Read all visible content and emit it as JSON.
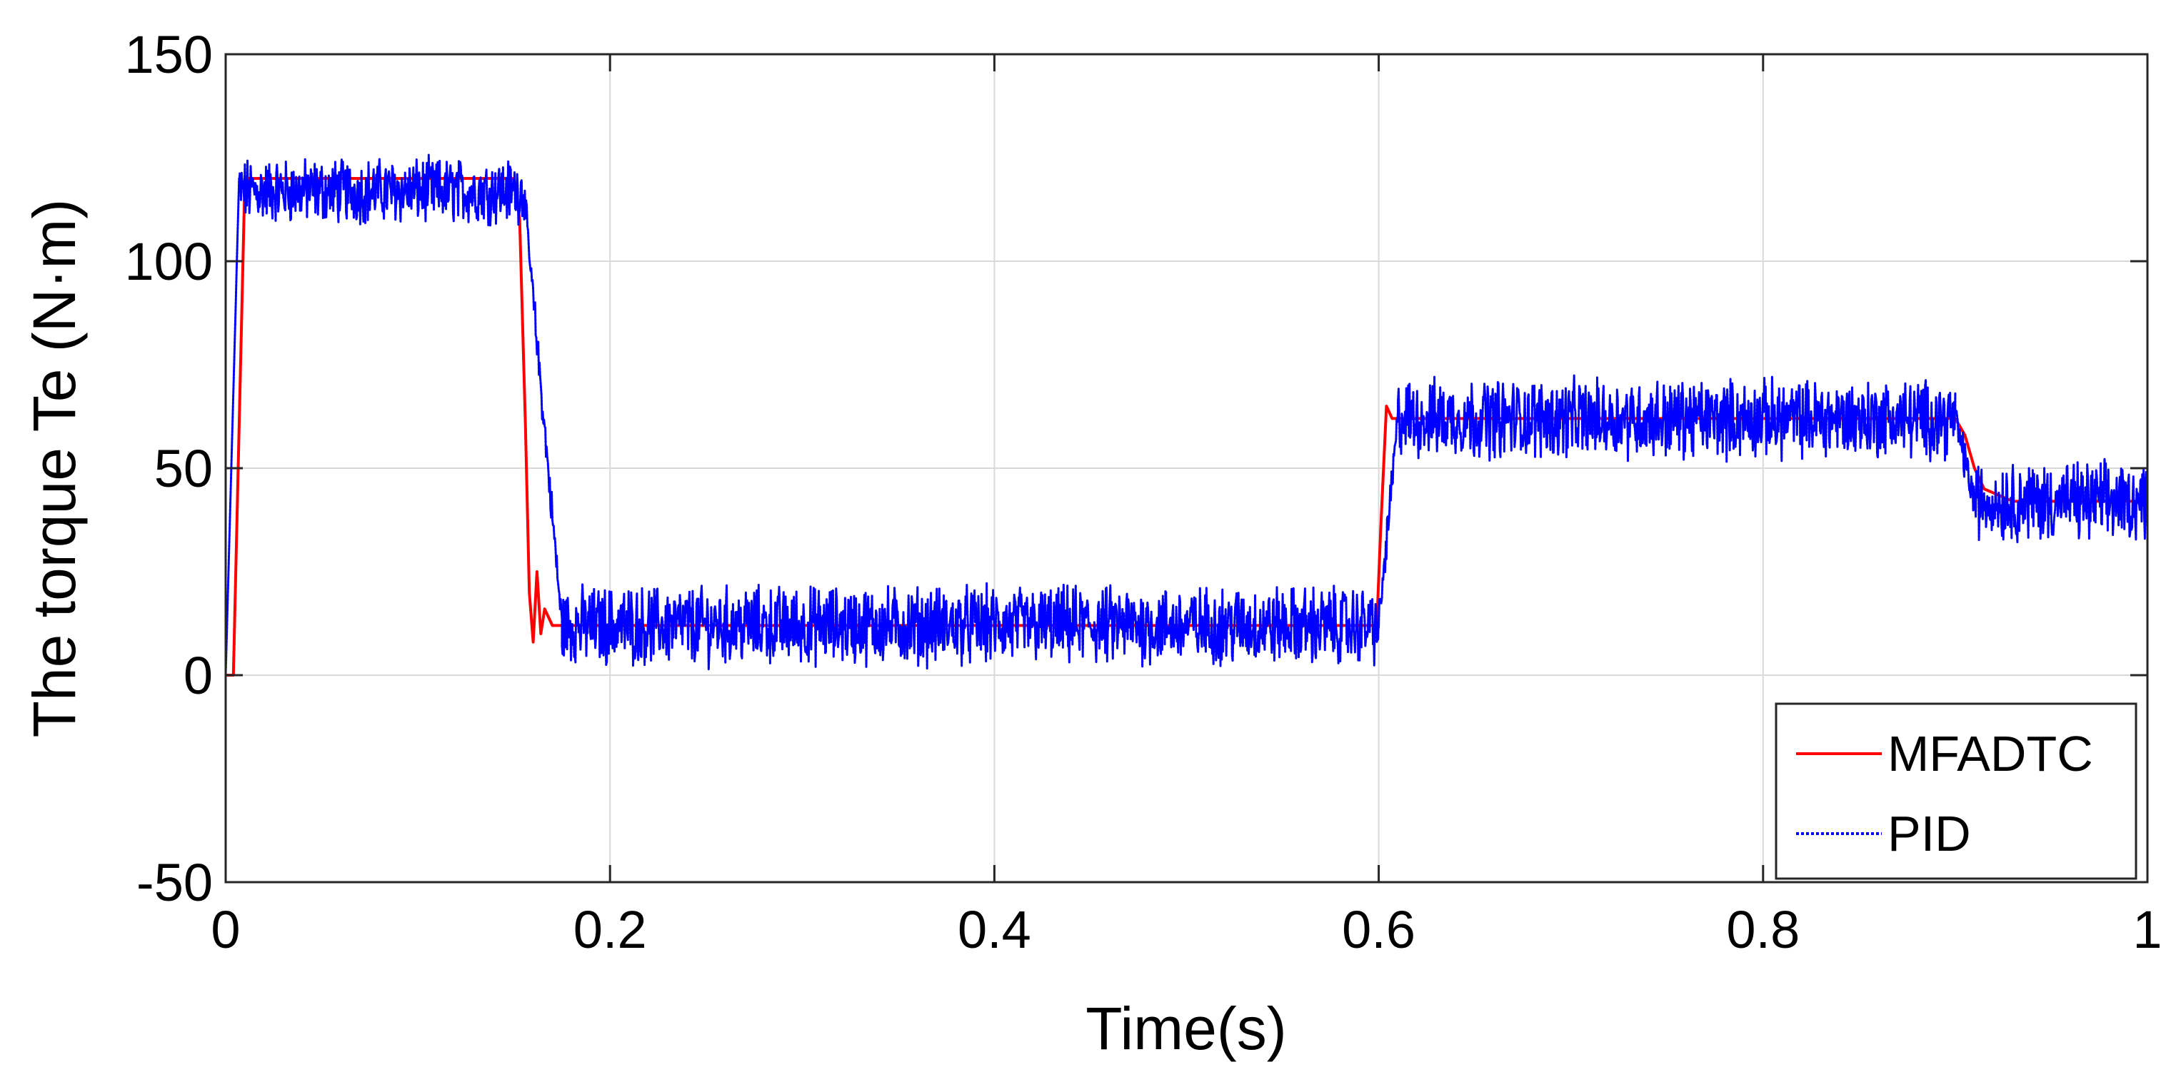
{
  "chart_data": {
    "type": "line",
    "title": "",
    "xlabel": "Time(s)",
    "ylabel": "The torque Te (N·m)",
    "xlim": [
      0,
      1
    ],
    "ylim": [
      -50,
      150
    ],
    "xticks": [
      0,
      0.2,
      0.4,
      0.6,
      0.8,
      1
    ],
    "xtick_labels": [
      "0",
      "0.2",
      "0.4",
      "0.6",
      "0.8",
      "1"
    ],
    "yticks": [
      -50,
      0,
      50,
      100,
      150
    ],
    "ytick_labels": [
      "-50",
      "0",
      "50",
      "100",
      "150"
    ],
    "grid": true,
    "legend_position": "bottom-right",
    "series": [
      {
        "name": "MFADTC",
        "color": "#ff0000",
        "style": "solid",
        "x": [
          0,
          0.004,
          0.01,
          0.03,
          0.06,
          0.09,
          0.12,
          0.15,
          0.153,
          0.156,
          0.158,
          0.16,
          0.162,
          0.164,
          0.166,
          0.17,
          0.2,
          0.3,
          0.4,
          0.5,
          0.55,
          0.599,
          0.601,
          0.604,
          0.607,
          0.61,
          0.65,
          0.7,
          0.75,
          0.8,
          0.85,
          0.9,
          0.905,
          0.91,
          0.915,
          0.93,
          0.95,
          1.0
        ],
        "y": [
          0,
          0,
          120,
          120,
          120,
          120,
          120,
          120,
          110,
          60,
          20,
          8,
          25,
          10,
          16,
          12,
          12,
          12,
          12,
          12,
          12,
          12,
          35,
          65,
          62,
          62,
          62,
          62,
          62,
          62,
          62,
          62,
          58,
          50,
          45,
          42,
          42,
          42
        ]
      },
      {
        "name": "PID",
        "color": "#0000ff",
        "style": "dotted",
        "segments": [
          {
            "x0": 0,
            "x1": 0.007,
            "y0": 0,
            "y1": 120,
            "noise": 0
          },
          {
            "x0": 0.007,
            "x1": 0.155,
            "y0": 117,
            "y1": 117,
            "noise": 10
          },
          {
            "x0": 0.155,
            "x1": 0.175,
            "y0": 117,
            "y1": 12,
            "noise": 6
          },
          {
            "x0": 0.175,
            "x1": 0.6,
            "y0": 12,
            "y1": 12,
            "noise": 12
          },
          {
            "x0": 0.6,
            "x1": 0.61,
            "y0": 12,
            "y1": 62,
            "noise": 6
          },
          {
            "x0": 0.61,
            "x1": 0.9,
            "y0": 62,
            "y1": 62,
            "noise": 12
          },
          {
            "x0": 0.9,
            "x1": 0.91,
            "y0": 62,
            "y1": 42,
            "noise": 6
          },
          {
            "x0": 0.91,
            "x1": 1.0,
            "y0": 42,
            "y1": 42,
            "noise": 12
          }
        ]
      }
    ]
  }
}
